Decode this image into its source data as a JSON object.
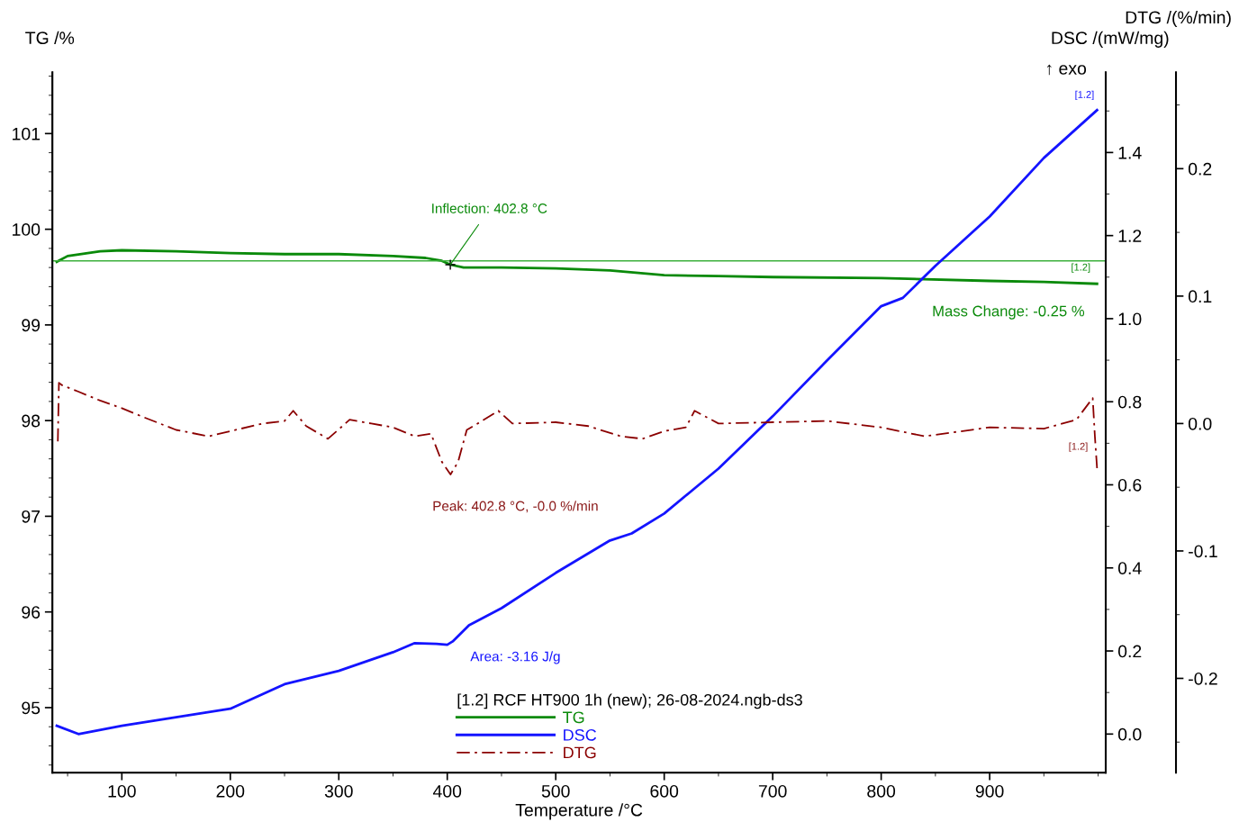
{
  "chart_data": {
    "type": "line",
    "xlabel": "Temperature /°C",
    "ylabel": "TG /%",
    "y2label": "DSC /(mW/mg)",
    "y3label": "DTG /(%/min)",
    "legend_title": "[1.2] RCF HT900 1h (new); 26-08-2024.ngb-ds3",
    "legend": "bottom",
    "xlim": [
      36,
      1007
    ],
    "xticks": [
      100,
      200,
      300,
      400,
      500,
      600,
      700,
      800,
      900
    ],
    "ylim": [
      94.32,
      101.64
    ],
    "yticks": [
      95,
      96,
      97,
      98,
      99,
      100,
      101
    ],
    "y2lim": [
      -0.093,
      1.593
    ],
    "y2ticks": [
      {
        "value": 0,
        "label": "0.0"
      },
      0.2,
      0.4,
      0.6,
      0.8,
      {
        "value": 1,
        "label": "1.0"
      },
      1.2,
      1.4
    ],
    "y3lim": [
      -0.274,
      0.2756
    ],
    "y3ticks": [
      -0.2,
      -0.1,
      {
        "value": 0,
        "label": "0.0"
      },
      0.1,
      0.2
    ],
    "grid": false,
    "marker": "none",
    "series": [
      {
        "name": "TG",
        "color": "#0a8a0a",
        "line_style": "solid",
        "x": [
          40,
          50,
          80,
          100,
          150,
          200,
          250,
          300,
          350,
          380,
          395,
          403,
          415,
          450,
          500,
          550,
          600,
          650,
          700,
          800,
          900,
          950,
          999
        ],
        "values": [
          99.66,
          99.72,
          99.77,
          99.78,
          99.77,
          99.75,
          99.74,
          99.74,
          99.72,
          99.7,
          99.67,
          99.63,
          99.6,
          99.6,
          99.59,
          99.57,
          99.52,
          99.51,
          99.5,
          99.49,
          99.46,
          99.45,
          99.43
        ]
      },
      {
        "name": "DSC",
        "color": "#1414ff",
        "line_style": "solid",
        "axis": "y2",
        "x": [
          40,
          60,
          100,
          200,
          250,
          300,
          350,
          370,
          390,
          400,
          405,
          420,
          450,
          500,
          550,
          570,
          600,
          650,
          700,
          750,
          800,
          820,
          850,
          900,
          950,
          999
        ],
        "values": [
          0.02,
          0.0,
          0.02,
          0.061,
          0.12,
          0.152,
          0.197,
          0.219,
          0.217,
          0.215,
          0.223,
          0.262,
          0.303,
          0.388,
          0.466,
          0.483,
          0.531,
          0.639,
          0.765,
          0.899,
          1.03,
          1.05,
          1.127,
          1.246,
          1.387,
          1.502
        ]
      },
      {
        "name": "DTG",
        "color": "#8b0000",
        "line_style": "dashdot",
        "axis": "y3",
        "x": [
          41,
          42,
          45,
          60,
          80,
          100,
          120,
          150,
          180,
          200,
          230,
          250,
          258,
          270,
          290,
          310,
          330,
          350,
          370,
          385,
          395,
          403,
          410,
          418,
          430,
          447,
          460,
          500,
          530,
          560,
          580,
          600,
          620,
          628,
          650,
          700,
          750,
          800,
          840,
          900,
          950,
          980,
          995,
          997,
          999
        ],
        "values": [
          -0.014,
          0.032,
          0.03,
          0.025,
          0.018,
          0.012,
          0.005,
          -0.005,
          -0.01,
          -0.006,
          0.0,
          0.002,
          0.01,
          -0.002,
          -0.012,
          0.003,
          0.0,
          -0.003,
          -0.01,
          -0.008,
          -0.03,
          -0.04,
          -0.03,
          -0.005,
          0.001,
          0.01,
          0.0,
          0.001,
          -0.002,
          -0.01,
          -0.012,
          -0.006,
          -0.003,
          0.01,
          0.0,
          0.001,
          0.002,
          -0.003,
          -0.01,
          -0.003,
          -0.004,
          0.003,
          0.02,
          -0.01,
          -0.035
        ]
      }
    ],
    "ref_lines": [
      {
        "axis": "y",
        "value": 99.67,
        "color": "#3cb03c",
        "line_style": "solid"
      }
    ],
    "annotations": [
      {
        "text": "Inflection: 402.8 °C",
        "x": 402.8,
        "y": 99.63
      },
      "Mass Change: -0.25 %",
      "Peak: 402.8 °C, -0.0 %/min",
      "Area: -3.16 J/g",
      "↑ exo",
      "[1.2]",
      "[1.2]",
      "[1.2]"
    ]
  }
}
